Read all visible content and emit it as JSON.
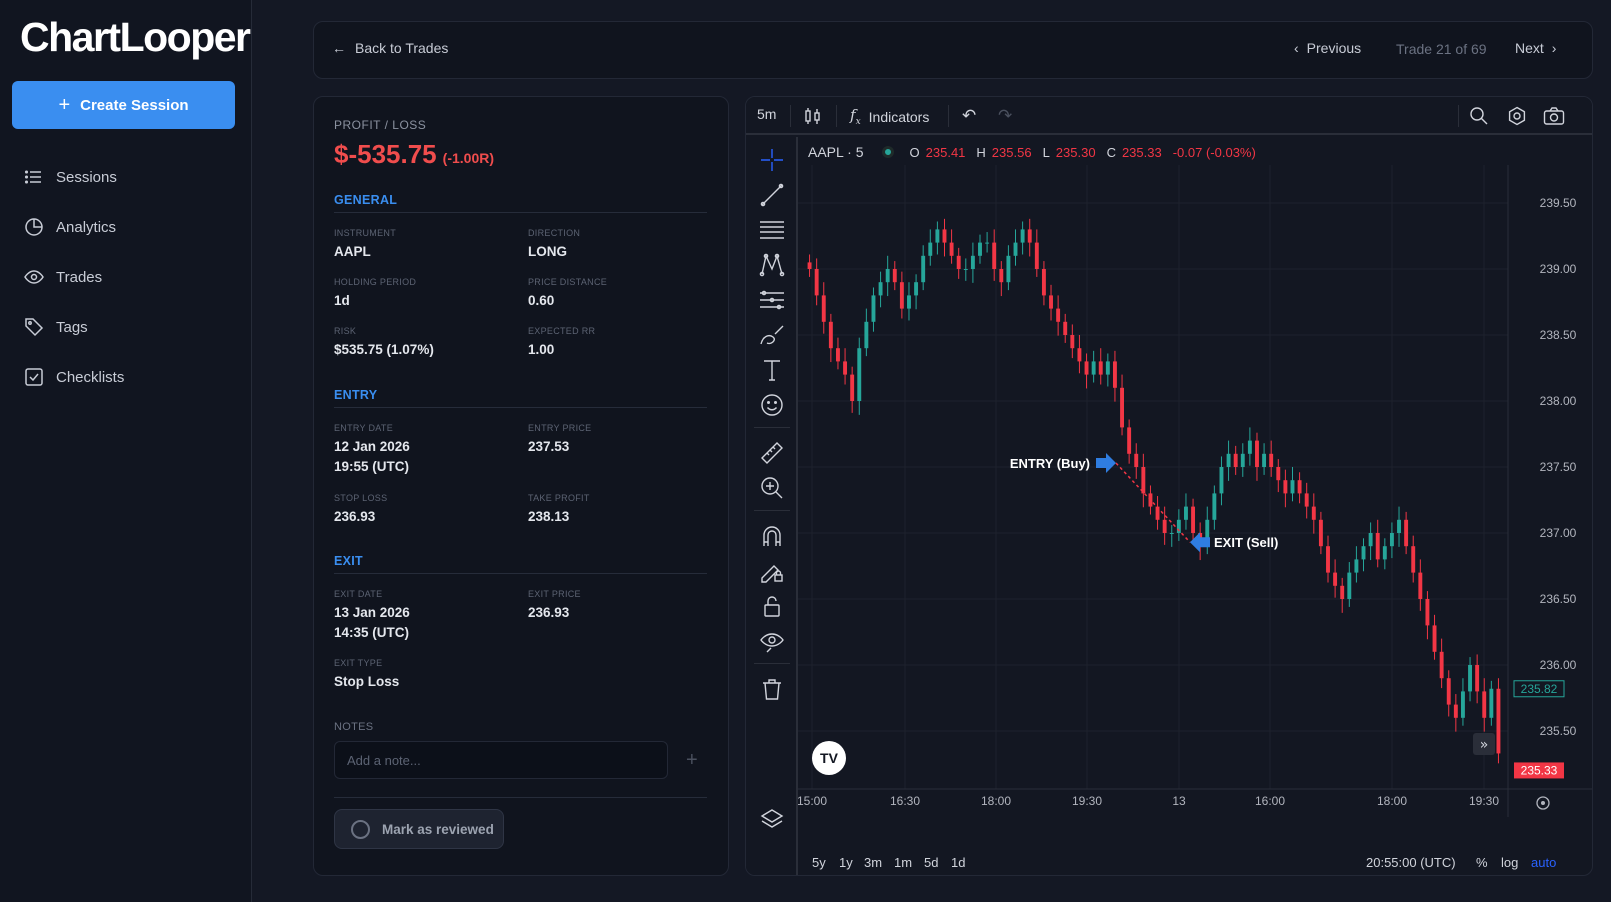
{
  "sidebar": {
    "logo": "ChartLooper",
    "create_label": "Create Session",
    "items": [
      {
        "label": "Sessions",
        "icon": "list-icon"
      },
      {
        "label": "Analytics",
        "icon": "pie-chart-icon"
      },
      {
        "label": "Trades",
        "icon": "eye-icon"
      },
      {
        "label": "Tags",
        "icon": "tag-icon"
      },
      {
        "label": "Checklists",
        "icon": "checkbox-icon"
      }
    ]
  },
  "topbar": {
    "back_label": "Back to Trades",
    "previous_label": "Previous",
    "counter": "Trade 21 of 69",
    "next_label": "Next"
  },
  "details": {
    "pl_label": "PROFIT / LOSS",
    "pl_value": "$-535.75",
    "pl_r": "(-1.00R)",
    "general": {
      "title": "GENERAL",
      "instrument_label": "INSTRUMENT",
      "instrument": "AAPL",
      "direction_label": "DIRECTION",
      "direction": "LONG",
      "holding_label": "HOLDING PERIOD",
      "holding": "1d",
      "distance_label": "PRICE DISTANCE",
      "distance": "0.60",
      "risk_label": "RISK",
      "risk": "$535.75 (1.07%)",
      "rr_label": "EXPECTED RR",
      "rr": "1.00"
    },
    "entry": {
      "title": "ENTRY",
      "date_label": "ENTRY DATE",
      "date": "12 Jan 2026",
      "time": "19:55 (UTC)",
      "price_label": "ENTRY PRICE",
      "price": "237.53",
      "sl_label": "STOP LOSS",
      "sl": "236.93",
      "tp_label": "TAKE PROFIT",
      "tp": "238.13"
    },
    "exit": {
      "title": "EXIT",
      "date_label": "EXIT DATE",
      "date": "13 Jan 2026",
      "time": "14:35 (UTC)",
      "price_label": "EXIT PRICE",
      "price": "236.93",
      "type_label": "EXIT TYPE",
      "type": "Stop Loss"
    },
    "notes_label": "NOTES",
    "note_placeholder": "Add a note...",
    "note_add": "+",
    "review_label": "Mark as reviewed"
  },
  "chart_toolbar": {
    "interval": "5m",
    "indicators_label": "Indicators"
  },
  "legend": {
    "symbol": "AAPL · 5",
    "o_label": "O",
    "o": "235.41",
    "h_label": "H",
    "h": "235.56",
    "l_label": "L",
    "l": "235.30",
    "c_label": "C",
    "c": "235.33",
    "change": "-0.07 (-0.03%)"
  },
  "bottom": {
    "ranges": [
      "5y",
      "1y",
      "3m",
      "1m",
      "5d",
      "1d"
    ],
    "timezone": "20:55:00 (UTC)",
    "percent": "%",
    "log": "log",
    "auto": "auto"
  },
  "colors": {
    "up": "#26a69a",
    "down": "#f23645",
    "accent": "#3a8ef0",
    "arrow": "#2f7de1"
  },
  "chart_data": {
    "type": "candlestick",
    "symbol": "AAPL",
    "interval": "5",
    "yticks": [
      "239.50",
      "239.00",
      "238.50",
      "238.00",
      "237.50",
      "237.00",
      "236.50",
      "236.00",
      "235.50"
    ],
    "ylim": [
      235.3,
      239.6
    ],
    "xticks": [
      "15:00",
      "16:30",
      "18:00",
      "19:30",
      "13",
      "16:00",
      "18:00",
      "19:30"
    ],
    "current_price": "235.82",
    "last_price": "235.33",
    "entry_label": "ENTRY (Buy)",
    "exit_label": "EXIT (Sell)",
    "entry_price": 237.53,
    "exit_price": 236.93,
    "close": [
      239.0,
      238.8,
      238.6,
      238.4,
      238.3,
      238.2,
      238.0,
      238.4,
      238.6,
      238.8,
      238.9,
      239.0,
      238.9,
      238.7,
      238.8,
      238.9,
      239.1,
      239.2,
      239.3,
      239.2,
      239.1,
      239.0,
      239.0,
      239.1,
      239.2,
      239.2,
      239.0,
      238.9,
      239.1,
      239.2,
      239.3,
      239.2,
      239.0,
      238.8,
      238.7,
      238.6,
      238.5,
      238.4,
      238.3,
      238.2,
      238.3,
      238.2,
      238.3,
      238.1,
      237.8,
      237.6,
      237.5,
      237.3,
      237.2,
      237.1,
      237.0,
      237.0,
      237.1,
      237.2,
      237.0,
      236.9,
      237.1,
      237.3,
      237.5,
      237.6,
      237.5,
      237.6,
      237.7,
      237.5,
      237.6,
      237.5,
      237.4,
      237.3,
      237.4,
      237.3,
      237.2,
      237.1,
      236.9,
      236.7,
      236.6,
      236.5,
      236.7,
      236.8,
      236.9,
      237.0,
      236.8,
      236.9,
      237.0,
      237.1,
      236.9,
      236.7,
      236.5,
      236.3,
      236.1,
      235.9,
      235.7,
      235.6,
      235.8,
      236.0,
      235.8,
      235.6,
      235.82,
      235.33
    ]
  }
}
